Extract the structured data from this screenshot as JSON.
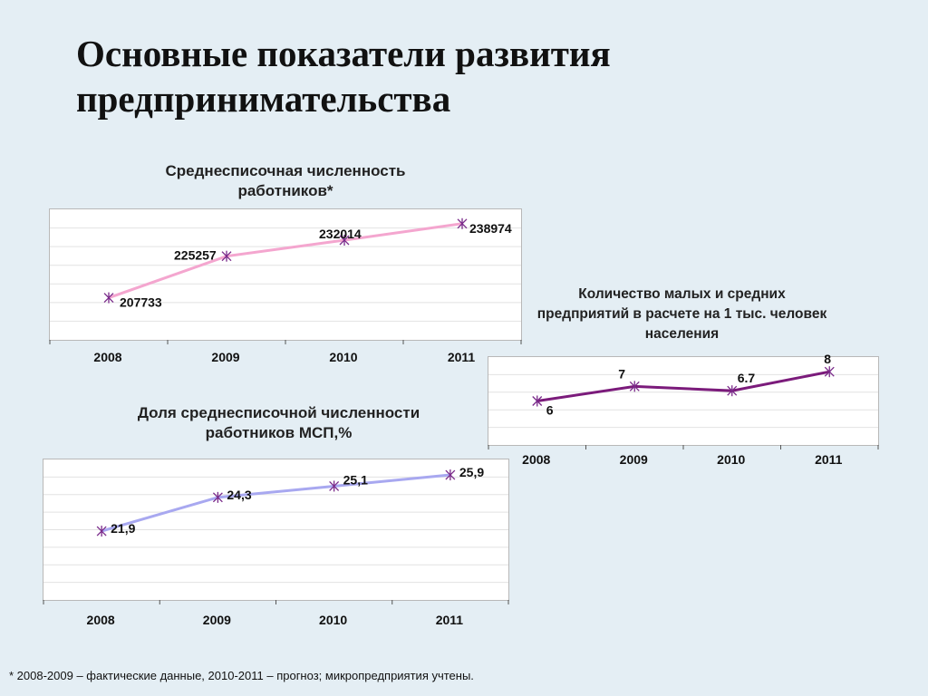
{
  "slide": {
    "title": "Основные показатели развития предпринимательства",
    "footnote": "* 2008-2009 – фактические данные, 2010-2011 – прогноз; микропредприятия учтены."
  },
  "chart_data": [
    {
      "id": "employees",
      "type": "line",
      "title": "Среднесписочная численность работников*",
      "categories": [
        "2008",
        "2009",
        "2010",
        "2011"
      ],
      "values": [
        207733,
        225257,
        232014,
        238974
      ],
      "value_labels": [
        "207733",
        "225257",
        "232014",
        "238974"
      ],
      "ylim": [
        190000,
        245000
      ],
      "line_color": "#f4a6cf",
      "marker": "asterisk",
      "marker_color": "#7a2a8a",
      "grid": true,
      "legend": "none"
    },
    {
      "id": "smes-per-1000",
      "type": "line",
      "title": "Количество малых и средних предприятий в расчете на 1 тыс. человек населения",
      "categories": [
        "2008",
        "2009",
        "2010",
        "2011"
      ],
      "values": [
        6,
        7,
        6.7,
        8
      ],
      "value_labels": [
        "6",
        "7",
        "6.7",
        "8"
      ],
      "ylim": [
        3,
        9
      ],
      "line_color": "#7b1b7b",
      "marker": "asterisk",
      "marker_color": "#7a2a8a",
      "grid": true,
      "legend": "none"
    },
    {
      "id": "sme-share",
      "type": "line",
      "title": "Доля среднесписочной численности работников МСП,%",
      "categories": [
        "2008",
        "2009",
        "2010",
        "2011"
      ],
      "values": [
        21.9,
        24.3,
        25.1,
        25.9
      ],
      "value_labels": [
        "21,9",
        "24,3",
        "25,1",
        "25,9"
      ],
      "ylim": [
        17,
        27
      ],
      "line_color": "#a8a8f0",
      "marker": "asterisk",
      "marker_color": "#7a2a8a",
      "grid": true,
      "legend": "none"
    }
  ]
}
